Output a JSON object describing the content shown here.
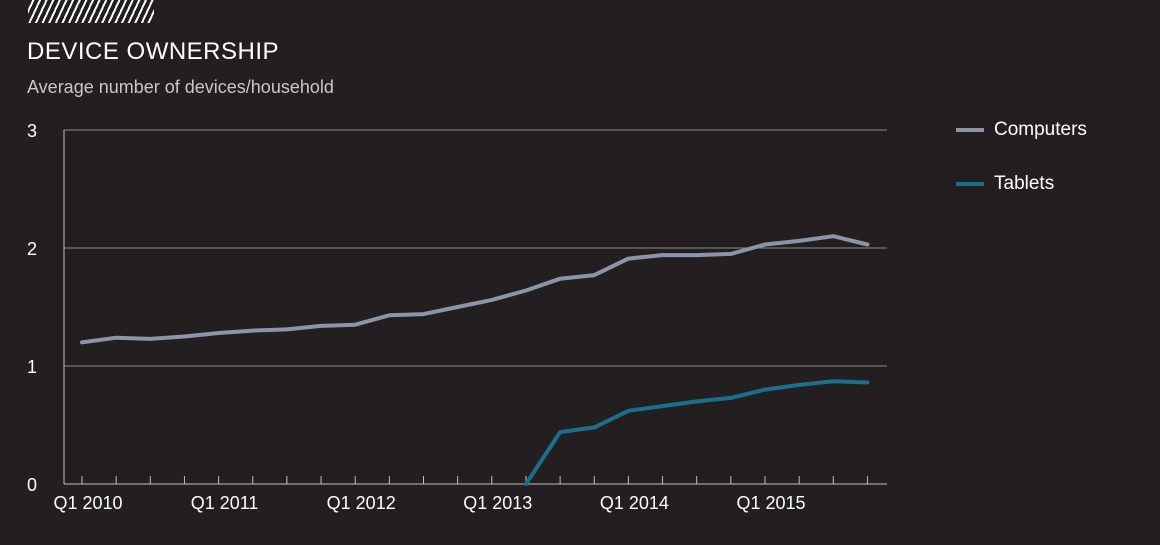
{
  "header": {
    "title": "DEVICE OWNERSHIP",
    "subtitle": "Average number of devices/household"
  },
  "colors": {
    "background": "#231f20",
    "computers": "#8c95a8",
    "tablets": "#1a6f8a",
    "grid": "#8a8a8a",
    "axis": "#bfbfbf"
  },
  "chart_data": {
    "type": "line",
    "title": "DEVICE OWNERSHIP",
    "subtitle": "Average number of devices/household",
    "xlabel": "",
    "ylabel": "",
    "ylim": [
      0,
      3
    ],
    "yticks": [
      0,
      1,
      2,
      3
    ],
    "grid": "horizontal",
    "legend": "right",
    "x": [
      "Q1 2010",
      "Q2 2010",
      "Q3 2010",
      "Q4 2010",
      "Q1 2011",
      "Q2 2011",
      "Q3 2011",
      "Q4 2011",
      "Q1 2012",
      "Q2 2012",
      "Q3 2012",
      "Q4 2012",
      "Q1 2013",
      "Q2 2013",
      "Q3 2013",
      "Q4 2013",
      "Q1 2014",
      "Q2 2014",
      "Q3 2014",
      "Q4 2014",
      "Q1 2015",
      "Q2 2015",
      "Q3 2015",
      "Q4 2015"
    ],
    "x_tick_labels": [
      "Q1 2010",
      "Q1 2011",
      "Q1 2012",
      "Q1 2013",
      "Q1 2014",
      "Q1 2015"
    ],
    "series": [
      {
        "name": "Computers",
        "color": "#8c95a8",
        "values": [
          1.2,
          1.24,
          1.23,
          1.25,
          1.28,
          1.3,
          1.31,
          1.34,
          1.35,
          1.43,
          1.44,
          1.5,
          1.56,
          1.64,
          1.74,
          1.77,
          1.91,
          1.94,
          1.94,
          1.95,
          2.03,
          2.06,
          2.1,
          2.03
        ]
      },
      {
        "name": "Tablets",
        "color": "#1a6f8a",
        "values": [
          null,
          null,
          null,
          null,
          null,
          null,
          null,
          null,
          null,
          null,
          null,
          null,
          null,
          0.0,
          0.44,
          0.48,
          0.62,
          0.66,
          0.7,
          0.73,
          0.8,
          0.84,
          0.87,
          0.86
        ]
      }
    ]
  }
}
